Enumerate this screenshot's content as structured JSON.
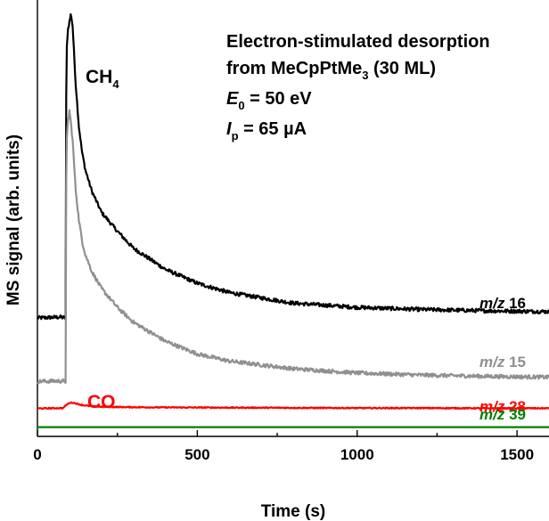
{
  "chart_data": {
    "type": "line",
    "xlabel": "Time (s)",
    "ylabel": "MS signal (arb. units)",
    "xlim": [
      0,
      1600
    ],
    "xticks": [
      "0",
      "500",
      "1000",
      "1500"
    ],
    "xtick_values": [
      0,
      500,
      1000,
      1500
    ],
    "ylim": [
      0,
      100
    ],
    "y_tick_labels_shown": false,
    "annotation": {
      "line1": "Electron-stimulated desorption",
      "line2_prefix": "from MeCpPtMe",
      "line2_sub": "3",
      "line2_suffix": " (30 ML)",
      "line3_var": "E",
      "line3_sub": "0",
      "line3_rest": " = 50 eV",
      "line4_var": "I",
      "line4_sub": "p",
      "line4_rest": " = 65 µA"
    },
    "species_labels": [
      {
        "main": "CH",
        "sub": "4",
        "color": "#000000"
      },
      {
        "main": "CO",
        "sub": "",
        "color": "#ff0000"
      }
    ],
    "series": [
      {
        "name_italic": "m/z",
        "name_value": " 16",
        "color": "#000000",
        "x": [
          0,
          70,
          88,
          90,
          92,
          95,
          100,
          105,
          110,
          115,
          120,
          130,
          140,
          150,
          170,
          200,
          250,
          300,
          400,
          500,
          600,
          800,
          1000,
          1200,
          1400,
          1600
        ],
        "y": [
          28.0,
          28.2,
          28.0,
          80,
          92,
          96,
          98,
          100,
          97,
          90,
          83,
          73,
          67,
          63,
          58,
          53,
          48.5,
          44.5,
          39.5,
          36.2,
          34.0,
          31.5,
          30.5,
          30.0,
          29.7,
          29.5
        ]
      },
      {
        "name_italic": "m/z",
        "name_value": " 15",
        "color": "#909090",
        "x": [
          0,
          70,
          88,
          90,
          92,
          95,
          100,
          105,
          110,
          115,
          120,
          130,
          140,
          150,
          170,
          200,
          250,
          300,
          400,
          500,
          600,
          800,
          1000,
          1200,
          1400,
          1600
        ],
        "y": [
          13.0,
          13.1,
          13.0,
          60,
          70,
          74,
          77,
          74,
          70,
          64,
          58,
          51,
          46,
          43,
          39,
          35,
          30.5,
          27,
          22.5,
          19.5,
          17.8,
          16.0,
          15.0,
          14.5,
          14.2,
          14.0
        ]
      },
      {
        "name_italic": "m/z",
        "name_value": " 28",
        "color": "#ff0000",
        "x": [
          0,
          80,
          90,
          100,
          110,
          120,
          140,
          170,
          200,
          300,
          400,
          600,
          800,
          1000,
          1200,
          1400,
          1600
        ],
        "y": [
          6.6,
          6.7,
          7.4,
          7.9,
          8.0,
          7.8,
          7.4,
          7.1,
          7.0,
          6.9,
          6.85,
          6.8,
          6.75,
          6.7,
          6.7,
          6.65,
          6.65
        ]
      },
      {
        "name_italic": "m/z",
        "name_value": " 39",
        "color": "#008000",
        "x": [
          0,
          400,
          800,
          1200,
          1600
        ],
        "y": [
          2.2,
          2.2,
          2.2,
          2.2,
          2.2
        ]
      }
    ]
  }
}
